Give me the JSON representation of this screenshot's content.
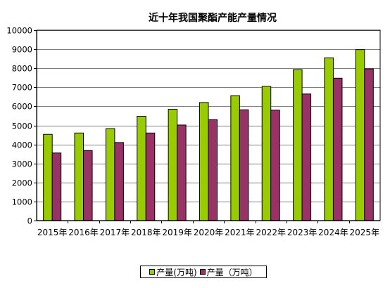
{
  "chart_data": {
    "type": "bar",
    "title": "近十年我国聚酯产能产量情况",
    "xlabel": "",
    "ylabel": "",
    "categories": [
      "2015年",
      "2016年",
      "2017年",
      "2018年",
      "2019年",
      "2020年",
      "2021年",
      "2022年",
      "2023年",
      "2024年",
      "2025年"
    ],
    "ylim": [
      0,
      10000
    ],
    "yticks": [
      0,
      1000,
      2000,
      3000,
      4000,
      5000,
      6000,
      7000,
      8000,
      9000,
      10000
    ],
    "grid": true,
    "legend_position": "bottom",
    "series": [
      {
        "name": "产量(万吨)",
        "color": "#99cc00",
        "values": [
          4530,
          4600,
          4830,
          5480,
          5850,
          6200,
          6560,
          7050,
          7930,
          8550,
          8980
        ]
      },
      {
        "name": "产量（万吨）",
        "color": "#993366",
        "values": [
          3550,
          3680,
          4100,
          4600,
          5020,
          5300,
          5820,
          5800,
          6650,
          7480,
          7970
        ]
      }
    ]
  }
}
